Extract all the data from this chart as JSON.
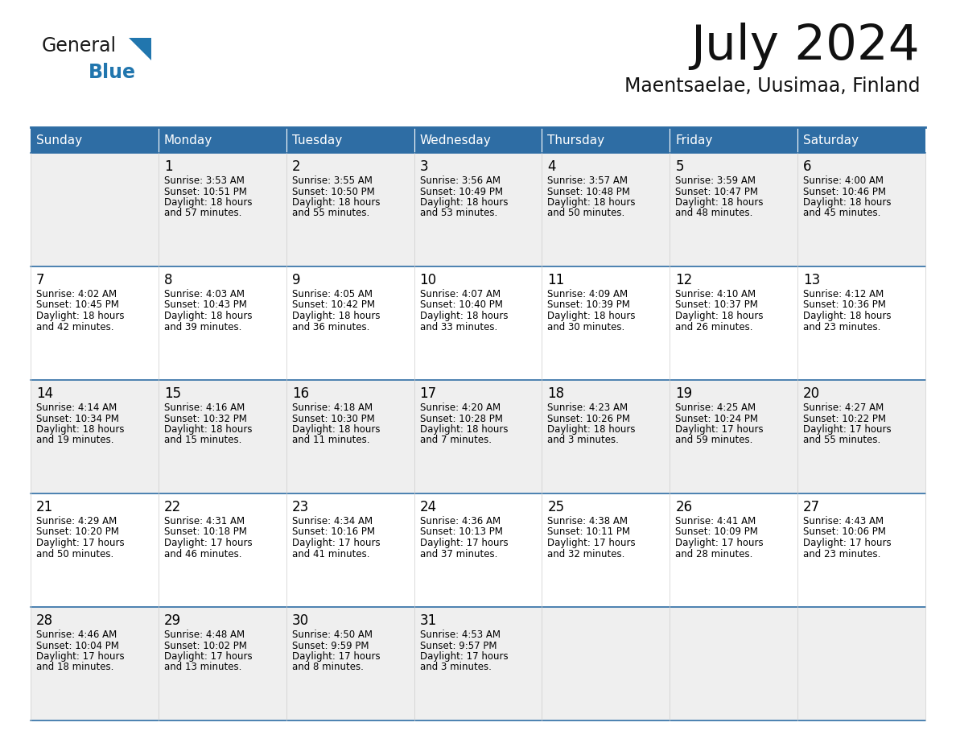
{
  "title": "July 2024",
  "subtitle": "Maentsaelae, Uusimaa, Finland",
  "header_bg": "#2E6DA4",
  "header_text": "#FFFFFF",
  "row_bg_odd": "#EFEFEF",
  "row_bg_even": "#FFFFFF",
  "cell_text": "#000000",
  "border_color": "#2E6DA4",
  "days_of_week": [
    "Sunday",
    "Monday",
    "Tuesday",
    "Wednesday",
    "Thursday",
    "Friday",
    "Saturday"
  ],
  "weeks": [
    [
      {
        "day": "",
        "sunrise": "",
        "sunset": "",
        "daylight": ""
      },
      {
        "day": "1",
        "sunrise": "Sunrise: 3:53 AM",
        "sunset": "Sunset: 10:51 PM",
        "daylight": "Daylight: 18 hours\nand 57 minutes."
      },
      {
        "day": "2",
        "sunrise": "Sunrise: 3:55 AM",
        "sunset": "Sunset: 10:50 PM",
        "daylight": "Daylight: 18 hours\nand 55 minutes."
      },
      {
        "day": "3",
        "sunrise": "Sunrise: 3:56 AM",
        "sunset": "Sunset: 10:49 PM",
        "daylight": "Daylight: 18 hours\nand 53 minutes."
      },
      {
        "day": "4",
        "sunrise": "Sunrise: 3:57 AM",
        "sunset": "Sunset: 10:48 PM",
        "daylight": "Daylight: 18 hours\nand 50 minutes."
      },
      {
        "day": "5",
        "sunrise": "Sunrise: 3:59 AM",
        "sunset": "Sunset: 10:47 PM",
        "daylight": "Daylight: 18 hours\nand 48 minutes."
      },
      {
        "day": "6",
        "sunrise": "Sunrise: 4:00 AM",
        "sunset": "Sunset: 10:46 PM",
        "daylight": "Daylight: 18 hours\nand 45 minutes."
      }
    ],
    [
      {
        "day": "7",
        "sunrise": "Sunrise: 4:02 AM",
        "sunset": "Sunset: 10:45 PM",
        "daylight": "Daylight: 18 hours\nand 42 minutes."
      },
      {
        "day": "8",
        "sunrise": "Sunrise: 4:03 AM",
        "sunset": "Sunset: 10:43 PM",
        "daylight": "Daylight: 18 hours\nand 39 minutes."
      },
      {
        "day": "9",
        "sunrise": "Sunrise: 4:05 AM",
        "sunset": "Sunset: 10:42 PM",
        "daylight": "Daylight: 18 hours\nand 36 minutes."
      },
      {
        "day": "10",
        "sunrise": "Sunrise: 4:07 AM",
        "sunset": "Sunset: 10:40 PM",
        "daylight": "Daylight: 18 hours\nand 33 minutes."
      },
      {
        "day": "11",
        "sunrise": "Sunrise: 4:09 AM",
        "sunset": "Sunset: 10:39 PM",
        "daylight": "Daylight: 18 hours\nand 30 minutes."
      },
      {
        "day": "12",
        "sunrise": "Sunrise: 4:10 AM",
        "sunset": "Sunset: 10:37 PM",
        "daylight": "Daylight: 18 hours\nand 26 minutes."
      },
      {
        "day": "13",
        "sunrise": "Sunrise: 4:12 AM",
        "sunset": "Sunset: 10:36 PM",
        "daylight": "Daylight: 18 hours\nand 23 minutes."
      }
    ],
    [
      {
        "day": "14",
        "sunrise": "Sunrise: 4:14 AM",
        "sunset": "Sunset: 10:34 PM",
        "daylight": "Daylight: 18 hours\nand 19 minutes."
      },
      {
        "day": "15",
        "sunrise": "Sunrise: 4:16 AM",
        "sunset": "Sunset: 10:32 PM",
        "daylight": "Daylight: 18 hours\nand 15 minutes."
      },
      {
        "day": "16",
        "sunrise": "Sunrise: 4:18 AM",
        "sunset": "Sunset: 10:30 PM",
        "daylight": "Daylight: 18 hours\nand 11 minutes."
      },
      {
        "day": "17",
        "sunrise": "Sunrise: 4:20 AM",
        "sunset": "Sunset: 10:28 PM",
        "daylight": "Daylight: 18 hours\nand 7 minutes."
      },
      {
        "day": "18",
        "sunrise": "Sunrise: 4:23 AM",
        "sunset": "Sunset: 10:26 PM",
        "daylight": "Daylight: 18 hours\nand 3 minutes."
      },
      {
        "day": "19",
        "sunrise": "Sunrise: 4:25 AM",
        "sunset": "Sunset: 10:24 PM",
        "daylight": "Daylight: 17 hours\nand 59 minutes."
      },
      {
        "day": "20",
        "sunrise": "Sunrise: 4:27 AM",
        "sunset": "Sunset: 10:22 PM",
        "daylight": "Daylight: 17 hours\nand 55 minutes."
      }
    ],
    [
      {
        "day": "21",
        "sunrise": "Sunrise: 4:29 AM",
        "sunset": "Sunset: 10:20 PM",
        "daylight": "Daylight: 17 hours\nand 50 minutes."
      },
      {
        "day": "22",
        "sunrise": "Sunrise: 4:31 AM",
        "sunset": "Sunset: 10:18 PM",
        "daylight": "Daylight: 17 hours\nand 46 minutes."
      },
      {
        "day": "23",
        "sunrise": "Sunrise: 4:34 AM",
        "sunset": "Sunset: 10:16 PM",
        "daylight": "Daylight: 17 hours\nand 41 minutes."
      },
      {
        "day": "24",
        "sunrise": "Sunrise: 4:36 AM",
        "sunset": "Sunset: 10:13 PM",
        "daylight": "Daylight: 17 hours\nand 37 minutes."
      },
      {
        "day": "25",
        "sunrise": "Sunrise: 4:38 AM",
        "sunset": "Sunset: 10:11 PM",
        "daylight": "Daylight: 17 hours\nand 32 minutes."
      },
      {
        "day": "26",
        "sunrise": "Sunrise: 4:41 AM",
        "sunset": "Sunset: 10:09 PM",
        "daylight": "Daylight: 17 hours\nand 28 minutes."
      },
      {
        "day": "27",
        "sunrise": "Sunrise: 4:43 AM",
        "sunset": "Sunset: 10:06 PM",
        "daylight": "Daylight: 17 hours\nand 23 minutes."
      }
    ],
    [
      {
        "day": "28",
        "sunrise": "Sunrise: 4:46 AM",
        "sunset": "Sunset: 10:04 PM",
        "daylight": "Daylight: 17 hours\nand 18 minutes."
      },
      {
        "day": "29",
        "sunrise": "Sunrise: 4:48 AM",
        "sunset": "Sunset: 10:02 PM",
        "daylight": "Daylight: 17 hours\nand 13 minutes."
      },
      {
        "day": "30",
        "sunrise": "Sunrise: 4:50 AM",
        "sunset": "Sunset: 9:59 PM",
        "daylight": "Daylight: 17 hours\nand 8 minutes."
      },
      {
        "day": "31",
        "sunrise": "Sunrise: 4:53 AM",
        "sunset": "Sunset: 9:57 PM",
        "daylight": "Daylight: 17 hours\nand 3 minutes."
      },
      {
        "day": "",
        "sunrise": "",
        "sunset": "",
        "daylight": ""
      },
      {
        "day": "",
        "sunrise": "",
        "sunset": "",
        "daylight": ""
      },
      {
        "day": "",
        "sunrise": "",
        "sunset": "",
        "daylight": ""
      }
    ]
  ],
  "logo_general_color": "#1a1a1a",
  "logo_blue_color": "#2176AE",
  "logo_triangle_color": "#2176AE",
  "fig_width": 11.88,
  "fig_height": 9.18,
  "dpi": 100
}
